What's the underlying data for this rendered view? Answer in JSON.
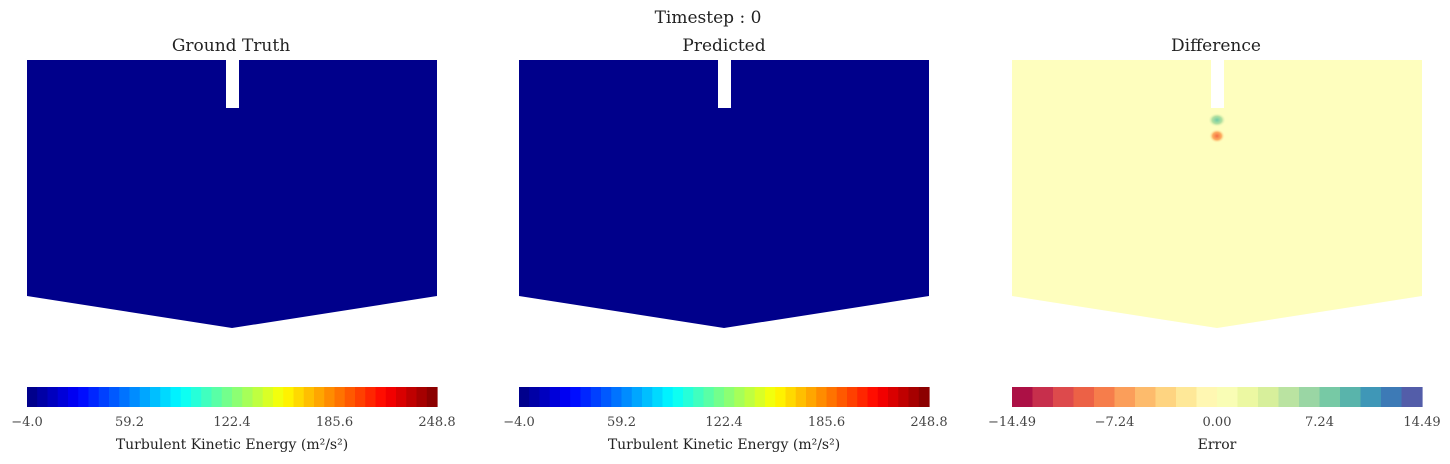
{
  "suptitle": "Timestep : 0",
  "chart_data": [
    {
      "type": "heatmap",
      "title": "Ground Truth",
      "field_value": -4.0,
      "colormap": "jet",
      "colorbar": {
        "label": "Turbulent Kinetic Energy (m²/s²)",
        "min": -4.0,
        "max": 248.8,
        "ticks": [
          "-4.0",
          "59.2",
          "122.4",
          "185.6",
          "248.8"
        ],
        "bins": 40
      }
    },
    {
      "type": "heatmap",
      "title": "Predicted",
      "field_value": -4.0,
      "colormap": "jet",
      "colorbar": {
        "label": "Turbulent Kinetic Energy (m²/s²)",
        "min": -4.0,
        "max": 248.8,
        "ticks": [
          "-4.0",
          "59.2",
          "122.4",
          "185.6",
          "248.8"
        ],
        "bins": 40
      }
    },
    {
      "type": "heatmap",
      "title": "Difference",
      "field_value": 0.0,
      "colormap": "Spectral",
      "colorbar": {
        "label": "Error",
        "min": -14.49,
        "max": 14.49,
        "ticks": [
          "-14.49",
          "-7.24",
          "0.00",
          "7.24",
          "14.49"
        ],
        "bins": 20
      }
    }
  ],
  "colors": {
    "field_low": "#00008b",
    "difference_neutral": "#fefebe",
    "background": "#ffffff"
  }
}
